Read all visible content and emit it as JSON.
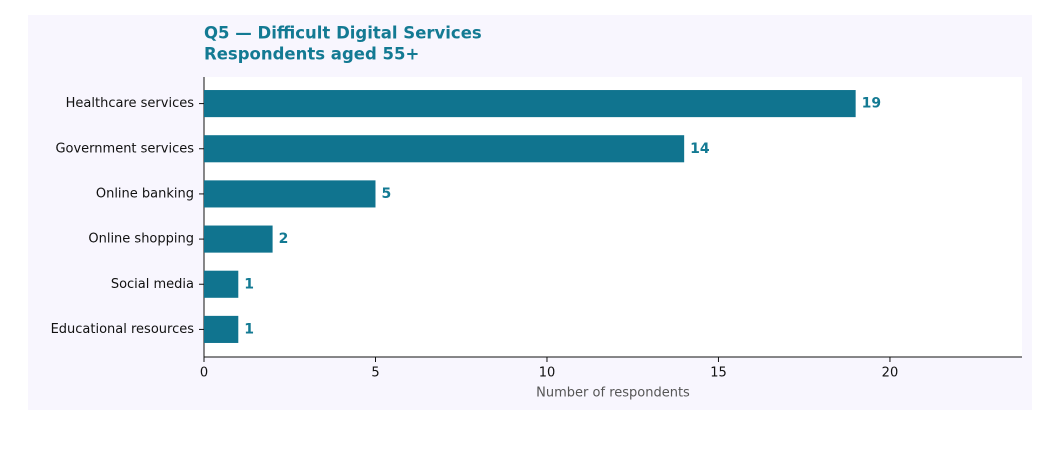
{
  "chart_data": {
    "type": "barh",
    "title": "Q5 — Difficult Digital Services",
    "subtitle": "Respondents aged 55+",
    "categories": [
      "Healthcare services",
      "Government services",
      "Online banking",
      "Online shopping",
      "Social media",
      "Educational resources"
    ],
    "values": [
      19,
      14,
      5,
      2,
      1,
      1
    ],
    "color": "#10748f",
    "xlabel": "Number of respondents",
    "xlim": [
      0,
      23.85
    ],
    "xticks": [
      0,
      5,
      10,
      15,
      20
    ],
    "grid": false
  }
}
